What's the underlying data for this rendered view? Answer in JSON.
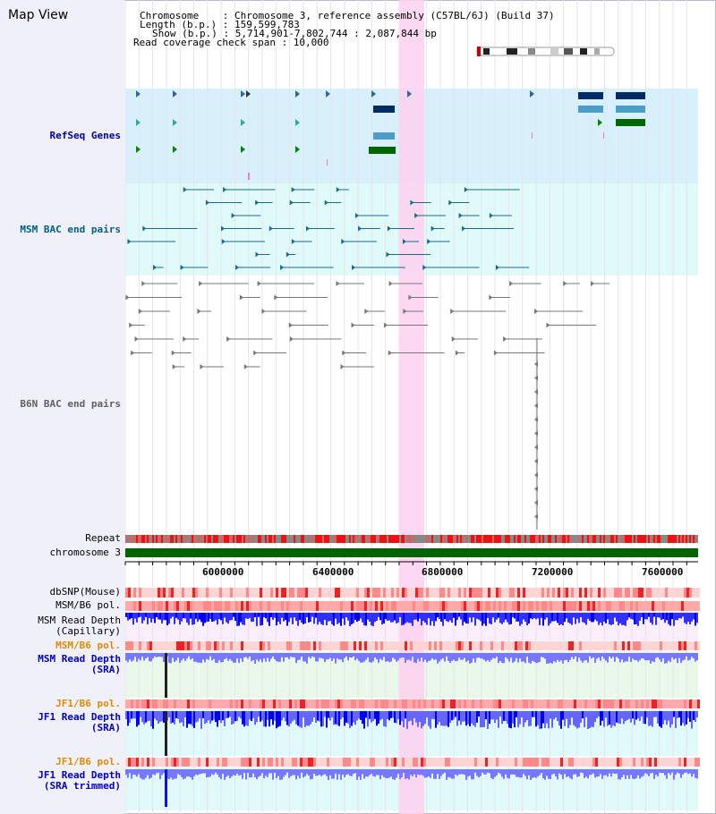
{
  "title": "Map View",
  "header": {
    "chromosome": "Chromosome    : Chromosome 3, reference assembly (C57BL/6J) (Build 37)",
    "length": "Length (b.p.) : 159,599,783",
    "show": "Show (b.p.) : 5,714,901-7,802,744 : 2,087,844 bp",
    "read_span": "Read coverage check span : 10,000"
  },
  "tracks": {
    "refseq": "RefSeq Genes",
    "msm_bac": "MSM BAC end pairs",
    "b6n_bac": "B6N BAC end pairs",
    "repeat": "Repeat",
    "chromosome": "chromosome 3",
    "dbsnp": "dbSNP(Mouse)",
    "msm_b6_pol": "MSM/B6 pol.",
    "msm_depth_cap_1": "MSM Read Depth",
    "msm_depth_cap_2": "(Capillary)",
    "msm_b6_pol_2": "MSM/B6 pol.",
    "msm_depth_sra_1": "MSM Read Depth",
    "msm_depth_sra_2": "(SRA)",
    "jf1_b6_pol": "JF1/B6 pol.",
    "jf1_depth_sra_1": "JF1 Read Depth",
    "jf1_depth_sra_2": "(SRA)",
    "jf1_b6_pol_2": "JF1/B6 pol.",
    "jf1_depth_trim_1": "JF1 Read Depth",
    "jf1_depth_trim_2": "(SRA trimmed)"
  },
  "axis": {
    "ticks": [
      "6000000",
      "6400000",
      "6800000",
      "7200000",
      "7600000"
    ]
  },
  "colors": {
    "highlight": "#ffd0f0",
    "refseq_bg": "#d8f0fb",
    "msm_bg": "#e0fafa",
    "chromosome": "#006400",
    "depth_blue": "#0000ee",
    "depth_light": "#7878ff",
    "polymorphism": "#ff3030"
  }
}
